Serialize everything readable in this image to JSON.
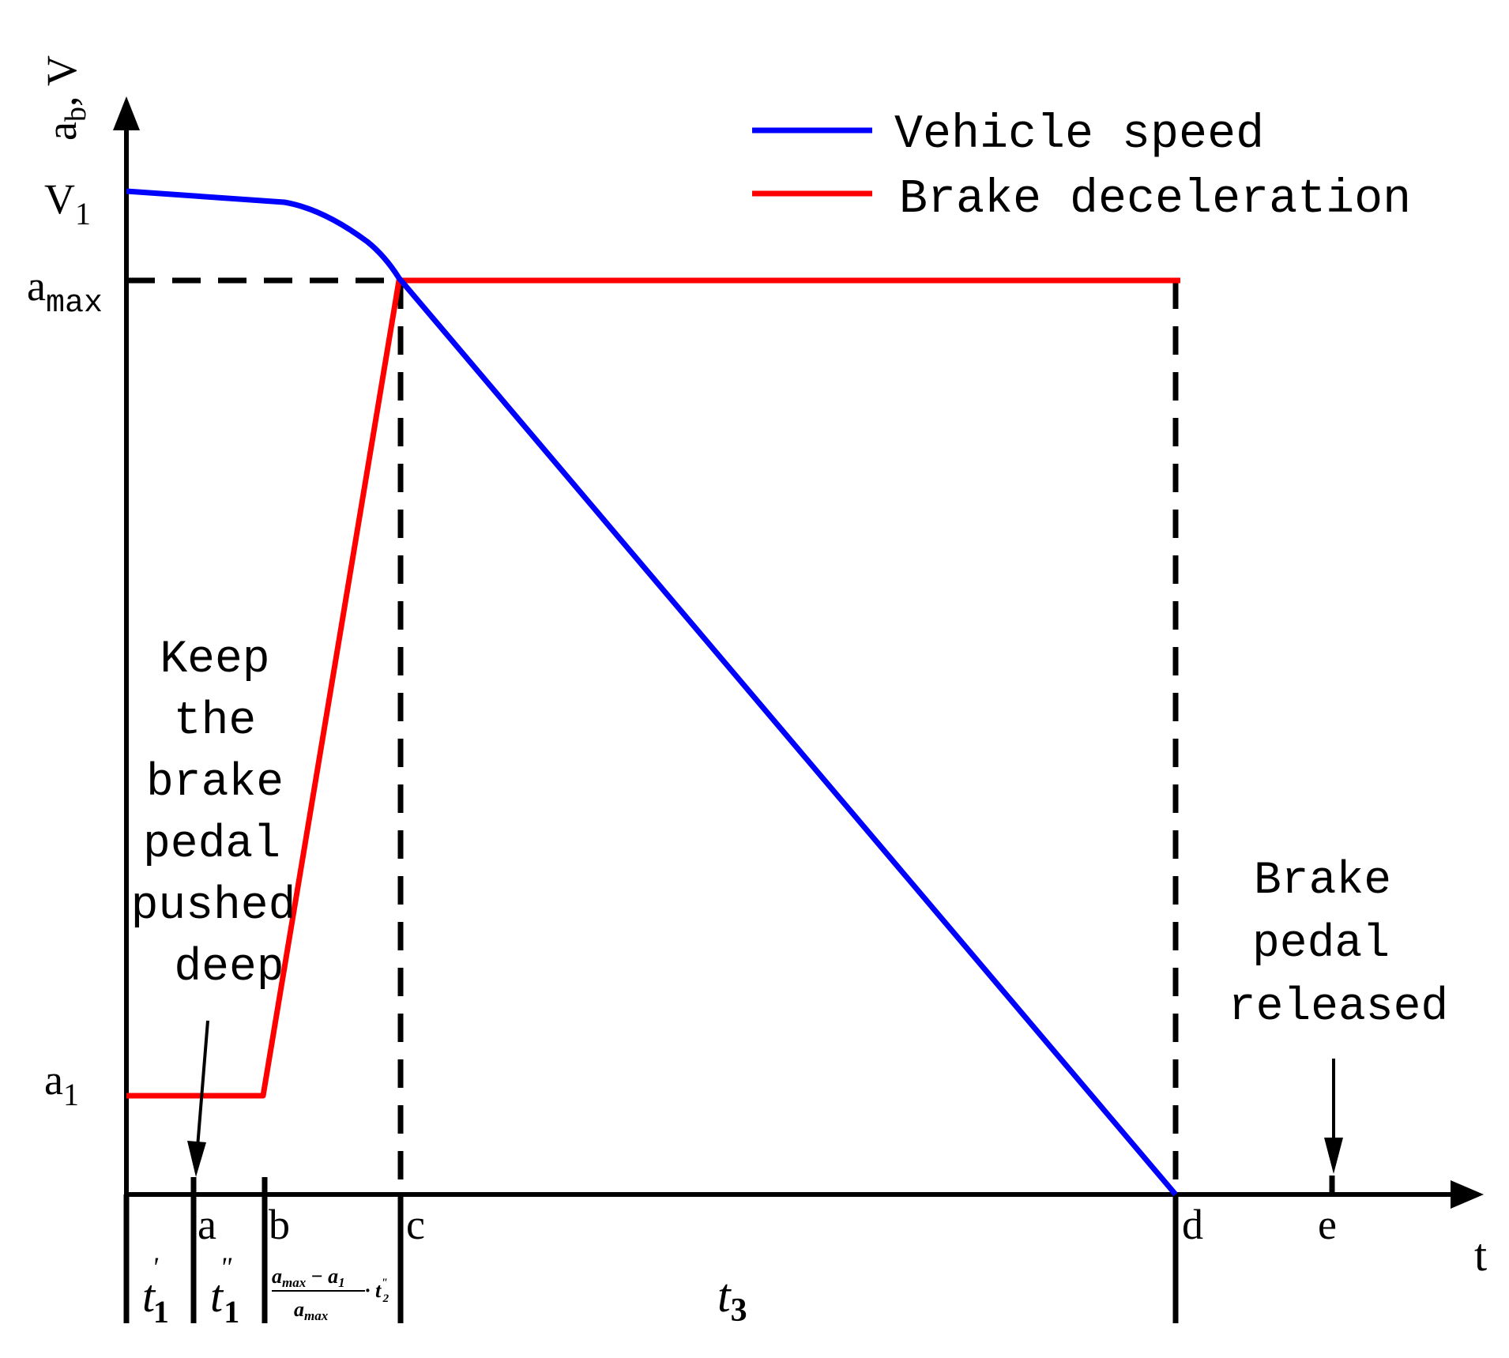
{
  "chart_data": {
    "type": "line",
    "colors": {
      "speed": "#0000ff",
      "deceleration": "#ff0000",
      "axes": "#000000"
    },
    "axes": {
      "y_label_main": "a",
      "y_label_sub": "b",
      "y_label_rest": ", V",
      "x_label": "t",
      "x_ticks": [
        "a",
        "b",
        "c",
        "d",
        "e"
      ],
      "y_ticks": [
        {
          "main": "V",
          "sub": "1"
        },
        {
          "main": "a",
          "sub": "max"
        },
        {
          "main": "a",
          "sub": "1"
        }
      ]
    },
    "legend": {
      "placement": "top-right",
      "entries": [
        "Vehicle speed",
        "Brake deceleration"
      ]
    },
    "intervals": {
      "t1p": {
        "main": "t",
        "sub": "1",
        "sup": "'"
      },
      "t1pp": {
        "main": "t",
        "sub": "1",
        "sup": "\""
      },
      "formula": {
        "num_a": "a",
        "num_a_sub": "max",
        "minus": " − ",
        "num_b": "a",
        "num_b_sub": "1",
        "times": " · t",
        "times_sub": "2",
        "times_sup": "\"",
        "den": "a",
        "den_sub": "max"
      },
      "t3": {
        "main": "t",
        "sub": "3"
      }
    },
    "annotations": {
      "keep_pedal": [
        "Keep",
        "the",
        "brake",
        "pedal",
        "pushed",
        "deep"
      ],
      "pedal_released": [
        "Brake",
        "pedal",
        "released"
      ]
    }
  }
}
